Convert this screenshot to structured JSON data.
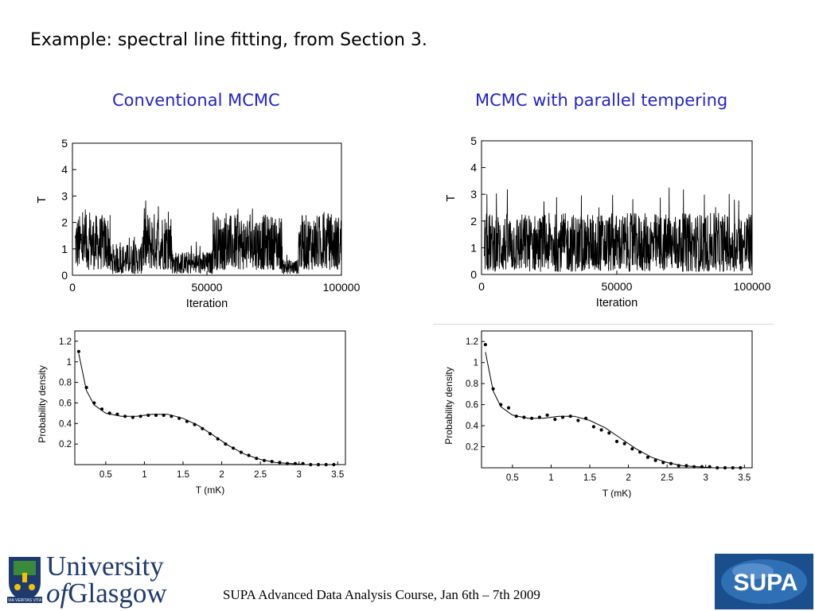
{
  "slide": {
    "title": "Example:  spectral line fitting, from Section 3.",
    "left_heading": "Conventional MCMC",
    "right_heading": "MCMC with parallel tempering",
    "footer": "SUPA Advanced Data Analysis Course, Jan 6th – 7th 2009"
  },
  "logos": {
    "university_line1": "University",
    "university_of": "of",
    "university_glasgow": "Glasgow",
    "crest_motto": "VIA VERITAS VITA",
    "supa_text": "SUPA",
    "crest_colors": {
      "shield": "#1f3a6e",
      "accent": "#f2c300",
      "green": "#3a8a3a"
    },
    "supa_colors": {
      "background": "#1a4e8c",
      "circle": "#ffffff"
    }
  },
  "chart_data": [
    {
      "type": "line",
      "id": "trace-conventional",
      "title": "",
      "xlabel": "Iteration",
      "ylabel": "T",
      "xlim": [
        0,
        100000
      ],
      "ylim": [
        0,
        5
      ],
      "x_ticks": [
        "0",
        "50000",
        "100000"
      ],
      "y_ticks": [
        "0",
        "1",
        "2",
        "3",
        "4",
        "5"
      ],
      "regimes": [
        {
          "x": [
            1000,
            14000
          ],
          "low": 0.2,
          "high": 2.3,
          "spike": 2.6
        },
        {
          "x": [
            14000,
            26000
          ],
          "low": 0.05,
          "high": 1.2,
          "spike": 1.5
        },
        {
          "x": [
            26000,
            37000
          ],
          "low": 0.2,
          "high": 2.4,
          "spike": 2.85
        },
        {
          "x": [
            37000,
            52000
          ],
          "low": 0.05,
          "high": 0.9,
          "spike": 1.3
        },
        {
          "x": [
            52000,
            78000
          ],
          "low": 0.2,
          "high": 2.3,
          "spike": 2.6
        },
        {
          "x": [
            78000,
            84000
          ],
          "low": 0.05,
          "high": 0.6,
          "spike": 0.9
        },
        {
          "x": [
            84000,
            100000
          ],
          "low": 0.2,
          "high": 2.3,
          "spike": 2.5
        }
      ]
    },
    {
      "type": "line",
      "id": "trace-tempering",
      "title": "",
      "xlabel": "Iteration",
      "ylabel": "T",
      "xlim": [
        0,
        100000
      ],
      "ylim": [
        0,
        5
      ],
      "x_ticks": [
        "0",
        "50000",
        "100000"
      ],
      "y_ticks": [
        "0",
        "1",
        "2",
        "3",
        "4",
        "5"
      ],
      "regimes": [
        {
          "x": [
            1000,
            100000
          ],
          "low": 0.1,
          "high": 2.3,
          "spike": 3.3
        }
      ]
    },
    {
      "type": "scatter",
      "id": "density-conventional",
      "title": "",
      "xlabel": "T (mK)",
      "ylabel": "Probability density",
      "xlim": [
        0.1,
        3.6
      ],
      "ylim": [
        0,
        1.3
      ],
      "x_ticks": [
        "0.5",
        "1",
        "1.5",
        "2",
        "2.5",
        "3",
        "3.5"
      ],
      "y_ticks": [
        "0.2",
        "0.4",
        "0.6",
        "0.8",
        "1",
        "1.2"
      ],
      "points": {
        "x": [
          0.15,
          0.25,
          0.35,
          0.45,
          0.55,
          0.65,
          0.75,
          0.85,
          0.95,
          1.05,
          1.15,
          1.25,
          1.35,
          1.45,
          1.55,
          1.65,
          1.75,
          1.85,
          1.95,
          2.05,
          2.15,
          2.25,
          2.35,
          2.45,
          2.55,
          2.65,
          2.75,
          2.85,
          2.95,
          3.05,
          3.15,
          3.25,
          3.35,
          3.45
        ],
        "y": [
          1.1,
          0.75,
          0.6,
          0.54,
          0.5,
          0.49,
          0.47,
          0.46,
          0.47,
          0.48,
          0.48,
          0.48,
          0.47,
          0.45,
          0.42,
          0.39,
          0.35,
          0.3,
          0.25,
          0.2,
          0.16,
          0.12,
          0.09,
          0.06,
          0.04,
          0.03,
          0.02,
          0.01,
          0.01,
          0.01,
          0.0,
          0.0,
          0.0,
          0.0
        ]
      },
      "curve": {
        "x": [
          0.15,
          0.25,
          0.35,
          0.5,
          0.7,
          0.9,
          1.1,
          1.3,
          1.5,
          1.7,
          1.9,
          2.1,
          2.3,
          2.5,
          2.7,
          2.9,
          3.1,
          3.3,
          3.5
        ],
        "y": [
          1.08,
          0.72,
          0.58,
          0.5,
          0.47,
          0.47,
          0.49,
          0.49,
          0.45,
          0.38,
          0.28,
          0.18,
          0.1,
          0.05,
          0.02,
          0.01,
          0.0,
          0.0,
          0.0
        ]
      }
    },
    {
      "type": "scatter",
      "id": "density-tempering",
      "title": "",
      "xlabel": "T (mK)",
      "ylabel": "Probability density",
      "xlim": [
        0.1,
        3.6
      ],
      "ylim": [
        0,
        1.3
      ],
      "x_ticks": [
        "0.5",
        "1",
        "1.5",
        "2",
        "2.5",
        "3",
        "3.5"
      ],
      "y_ticks": [
        "0.2",
        "0.4",
        "0.6",
        "0.8",
        "1",
        "1.2"
      ],
      "points": {
        "x": [
          0.15,
          0.25,
          0.35,
          0.45,
          0.55,
          0.65,
          0.75,
          0.85,
          0.95,
          1.05,
          1.15,
          1.25,
          1.35,
          1.45,
          1.55,
          1.65,
          1.75,
          1.85,
          1.95,
          2.05,
          2.15,
          2.25,
          2.35,
          2.45,
          2.55,
          2.65,
          2.75,
          2.85,
          2.95,
          3.05,
          3.15,
          3.25,
          3.35,
          3.45
        ],
        "y": [
          1.17,
          0.75,
          0.6,
          0.57,
          0.49,
          0.48,
          0.47,
          0.48,
          0.5,
          0.46,
          0.48,
          0.49,
          0.45,
          0.47,
          0.39,
          0.36,
          0.33,
          0.25,
          0.23,
          0.18,
          0.15,
          0.1,
          0.07,
          0.05,
          0.04,
          0.02,
          0.02,
          0.01,
          0.01,
          0.01,
          0.0,
          0.0,
          0.0,
          0.0
        ]
      },
      "curve": {
        "x": [
          0.15,
          0.25,
          0.35,
          0.5,
          0.7,
          0.9,
          1.1,
          1.3,
          1.5,
          1.7,
          1.9,
          2.1,
          2.3,
          2.5,
          2.7,
          2.9,
          3.1,
          3.3,
          3.5
        ],
        "y": [
          1.1,
          0.73,
          0.58,
          0.5,
          0.47,
          0.47,
          0.49,
          0.49,
          0.45,
          0.38,
          0.28,
          0.18,
          0.1,
          0.05,
          0.02,
          0.01,
          0.0,
          0.0,
          0.0
        ]
      }
    }
  ]
}
